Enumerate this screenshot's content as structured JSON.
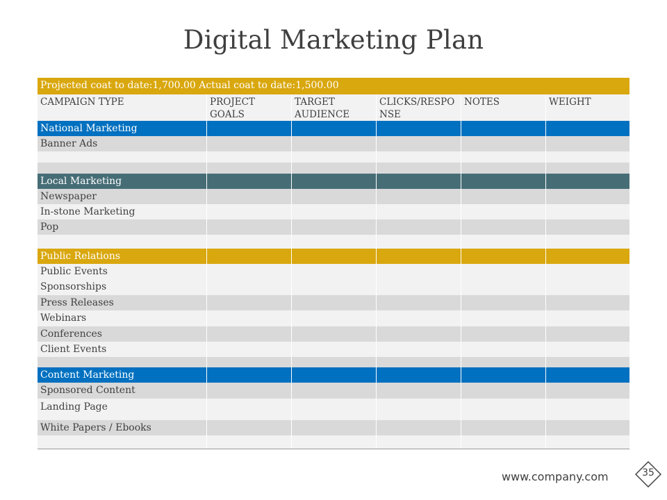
{
  "slide": {
    "title": "Digital Marketing Plan",
    "projected_line": "Projected coat to date:1,700.00 Actual coat to date:1,500.00",
    "footer_url": "www.company.com",
    "page_number": "35"
  },
  "table": {
    "headers": [
      "CAMPAIGN TYPE",
      "PROJECT GOALS",
      "TARGET AUDIENCE",
      "CLICKS/RESPONSE",
      "NOTES",
      "WEIGHT"
    ],
    "sections": {
      "national": {
        "label": "National Marketing",
        "items": [
          "Banner Ads"
        ]
      },
      "local": {
        "label": "Local Marketing",
        "items": [
          "Newspaper",
          "In-stone Marketing",
          "Pop"
        ]
      },
      "pr": {
        "label": "Public Relations",
        "items": [
          "Public Events",
          "Sponsorships",
          "Press Releases",
          "Webinars",
          "Conferences",
          "Client Events"
        ]
      },
      "content": {
        "label": "Content Marketing",
        "items": [
          "Sponsored Content",
          "Landing Page",
          "White Papers / Ebooks"
        ]
      }
    }
  },
  "colors": {
    "gold": "#d9a70e",
    "blue": "#0070c0",
    "teal": "#466d76",
    "row_dark": "#d9d9d9",
    "row_light": "#f2f2f2"
  }
}
